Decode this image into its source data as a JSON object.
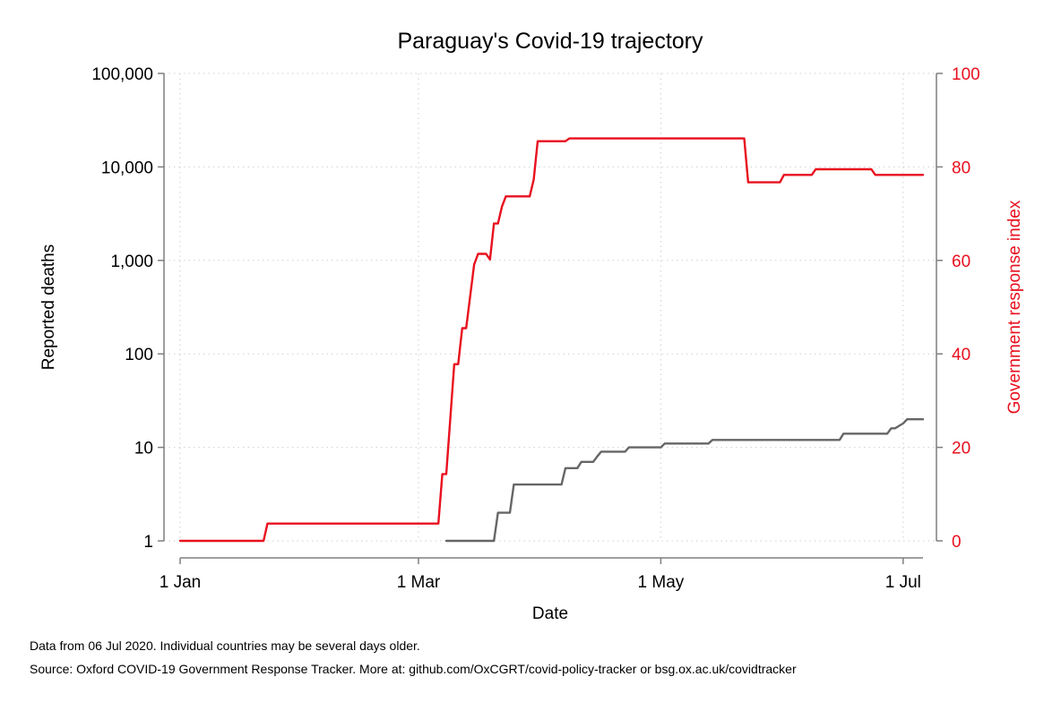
{
  "chart_data": {
    "type": "line",
    "title": "Paraguay's Covid-19 trajectory",
    "xlabel": "Date",
    "ylabel_left": "Reported deaths",
    "ylabel_right": "Government response index",
    "xlim": [
      "2020-01-01",
      "2020-07-06"
    ],
    "x_ticks": [
      {
        "date": "2020-01-01",
        "label": "1 Jan"
      },
      {
        "date": "2020-03-01",
        "label": "1 Mar"
      },
      {
        "date": "2020-05-01",
        "label": "1 May"
      },
      {
        "date": "2020-07-01",
        "label": "1 Jul"
      }
    ],
    "y_left": {
      "scale": "log",
      "lim": [
        1,
        100000
      ],
      "ticks": [
        {
          "value": 1,
          "label": "1"
        },
        {
          "value": 10,
          "label": "10"
        },
        {
          "value": 100,
          "label": "100"
        },
        {
          "value": 1000,
          "label": "1,000"
        },
        {
          "value": 10000,
          "label": "10,000"
        },
        {
          "value": 100000,
          "label": "100,000"
        }
      ]
    },
    "y_right": {
      "scale": "linear",
      "lim": [
        0,
        100
      ],
      "ticks": [
        {
          "value": 0,
          "label": "0"
        },
        {
          "value": 20,
          "label": "20"
        },
        {
          "value": 40,
          "label": "40"
        },
        {
          "value": 60,
          "label": "60"
        },
        {
          "value": 80,
          "label": "80"
        },
        {
          "value": 100,
          "label": "100"
        }
      ]
    },
    "grid": true,
    "series": [
      {
        "axis": "right",
        "color": "#e8101e",
        "points": [
          [
            "2020-01-01",
            0
          ],
          [
            "2020-01-22",
            0
          ],
          [
            "2020-01-23",
            3.7
          ],
          [
            "2020-03-06",
            3.7
          ],
          [
            "2020-03-07",
            14.3
          ],
          [
            "2020-03-08",
            14.3
          ],
          [
            "2020-03-10",
            37.8
          ],
          [
            "2020-03-11",
            37.8
          ],
          [
            "2020-03-12",
            45.5
          ],
          [
            "2020-03-13",
            45.5
          ],
          [
            "2020-03-15",
            59.1
          ],
          [
            "2020-03-16",
            61.4
          ],
          [
            "2020-03-18",
            61.4
          ],
          [
            "2020-03-19",
            60.2
          ],
          [
            "2020-03-20",
            67.9
          ],
          [
            "2020-03-21",
            67.9
          ],
          [
            "2020-03-22",
            71.5
          ],
          [
            "2020-03-23",
            73.7
          ],
          [
            "2020-03-29",
            73.7
          ],
          [
            "2020-03-30",
            77.3
          ],
          [
            "2020-03-31",
            85.5
          ],
          [
            "2020-04-07",
            85.5
          ],
          [
            "2020-04-08",
            86.1
          ],
          [
            "2020-05-22",
            86.1
          ],
          [
            "2020-05-23",
            76.7
          ],
          [
            "2020-05-31",
            76.7
          ],
          [
            "2020-06-01",
            78.3
          ],
          [
            "2020-06-08",
            78.3
          ],
          [
            "2020-06-09",
            79.5
          ],
          [
            "2020-06-23",
            79.5
          ],
          [
            "2020-06-24",
            78.3
          ],
          [
            "2020-07-06",
            78.3
          ]
        ]
      },
      {
        "axis": "left",
        "color": "#666666",
        "points": [
          [
            "2020-03-08",
            1
          ],
          [
            "2020-03-20",
            1
          ],
          [
            "2020-03-21",
            2
          ],
          [
            "2020-03-24",
            2
          ],
          [
            "2020-03-25",
            4
          ],
          [
            "2020-04-06",
            4
          ],
          [
            "2020-04-07",
            6
          ],
          [
            "2020-04-10",
            6
          ],
          [
            "2020-04-11",
            7
          ],
          [
            "2020-04-14",
            7
          ],
          [
            "2020-04-15",
            8
          ],
          [
            "2020-04-16",
            9
          ],
          [
            "2020-04-22",
            9
          ],
          [
            "2020-04-23",
            10
          ],
          [
            "2020-05-01",
            10
          ],
          [
            "2020-05-02",
            11
          ],
          [
            "2020-05-13",
            11
          ],
          [
            "2020-05-14",
            12
          ],
          [
            "2020-06-15",
            12
          ],
          [
            "2020-06-16",
            14
          ],
          [
            "2020-06-27",
            14
          ],
          [
            "2020-06-28",
            16
          ],
          [
            "2020-06-29",
            16
          ],
          [
            "2020-06-30",
            17
          ],
          [
            "2020-07-01",
            18
          ],
          [
            "2020-07-02",
            20
          ],
          [
            "2020-07-06",
            20
          ]
        ]
      }
    ]
  },
  "footnotes": [
    "Data from 06 Jul 2020. Individual countries may be several days older.",
    "Source: Oxford COVID-19 Government Response Tracker. More at: github.com/OxCGRT/covid-policy-tracker or bsg.ox.ac.uk/covidtracker"
  ]
}
